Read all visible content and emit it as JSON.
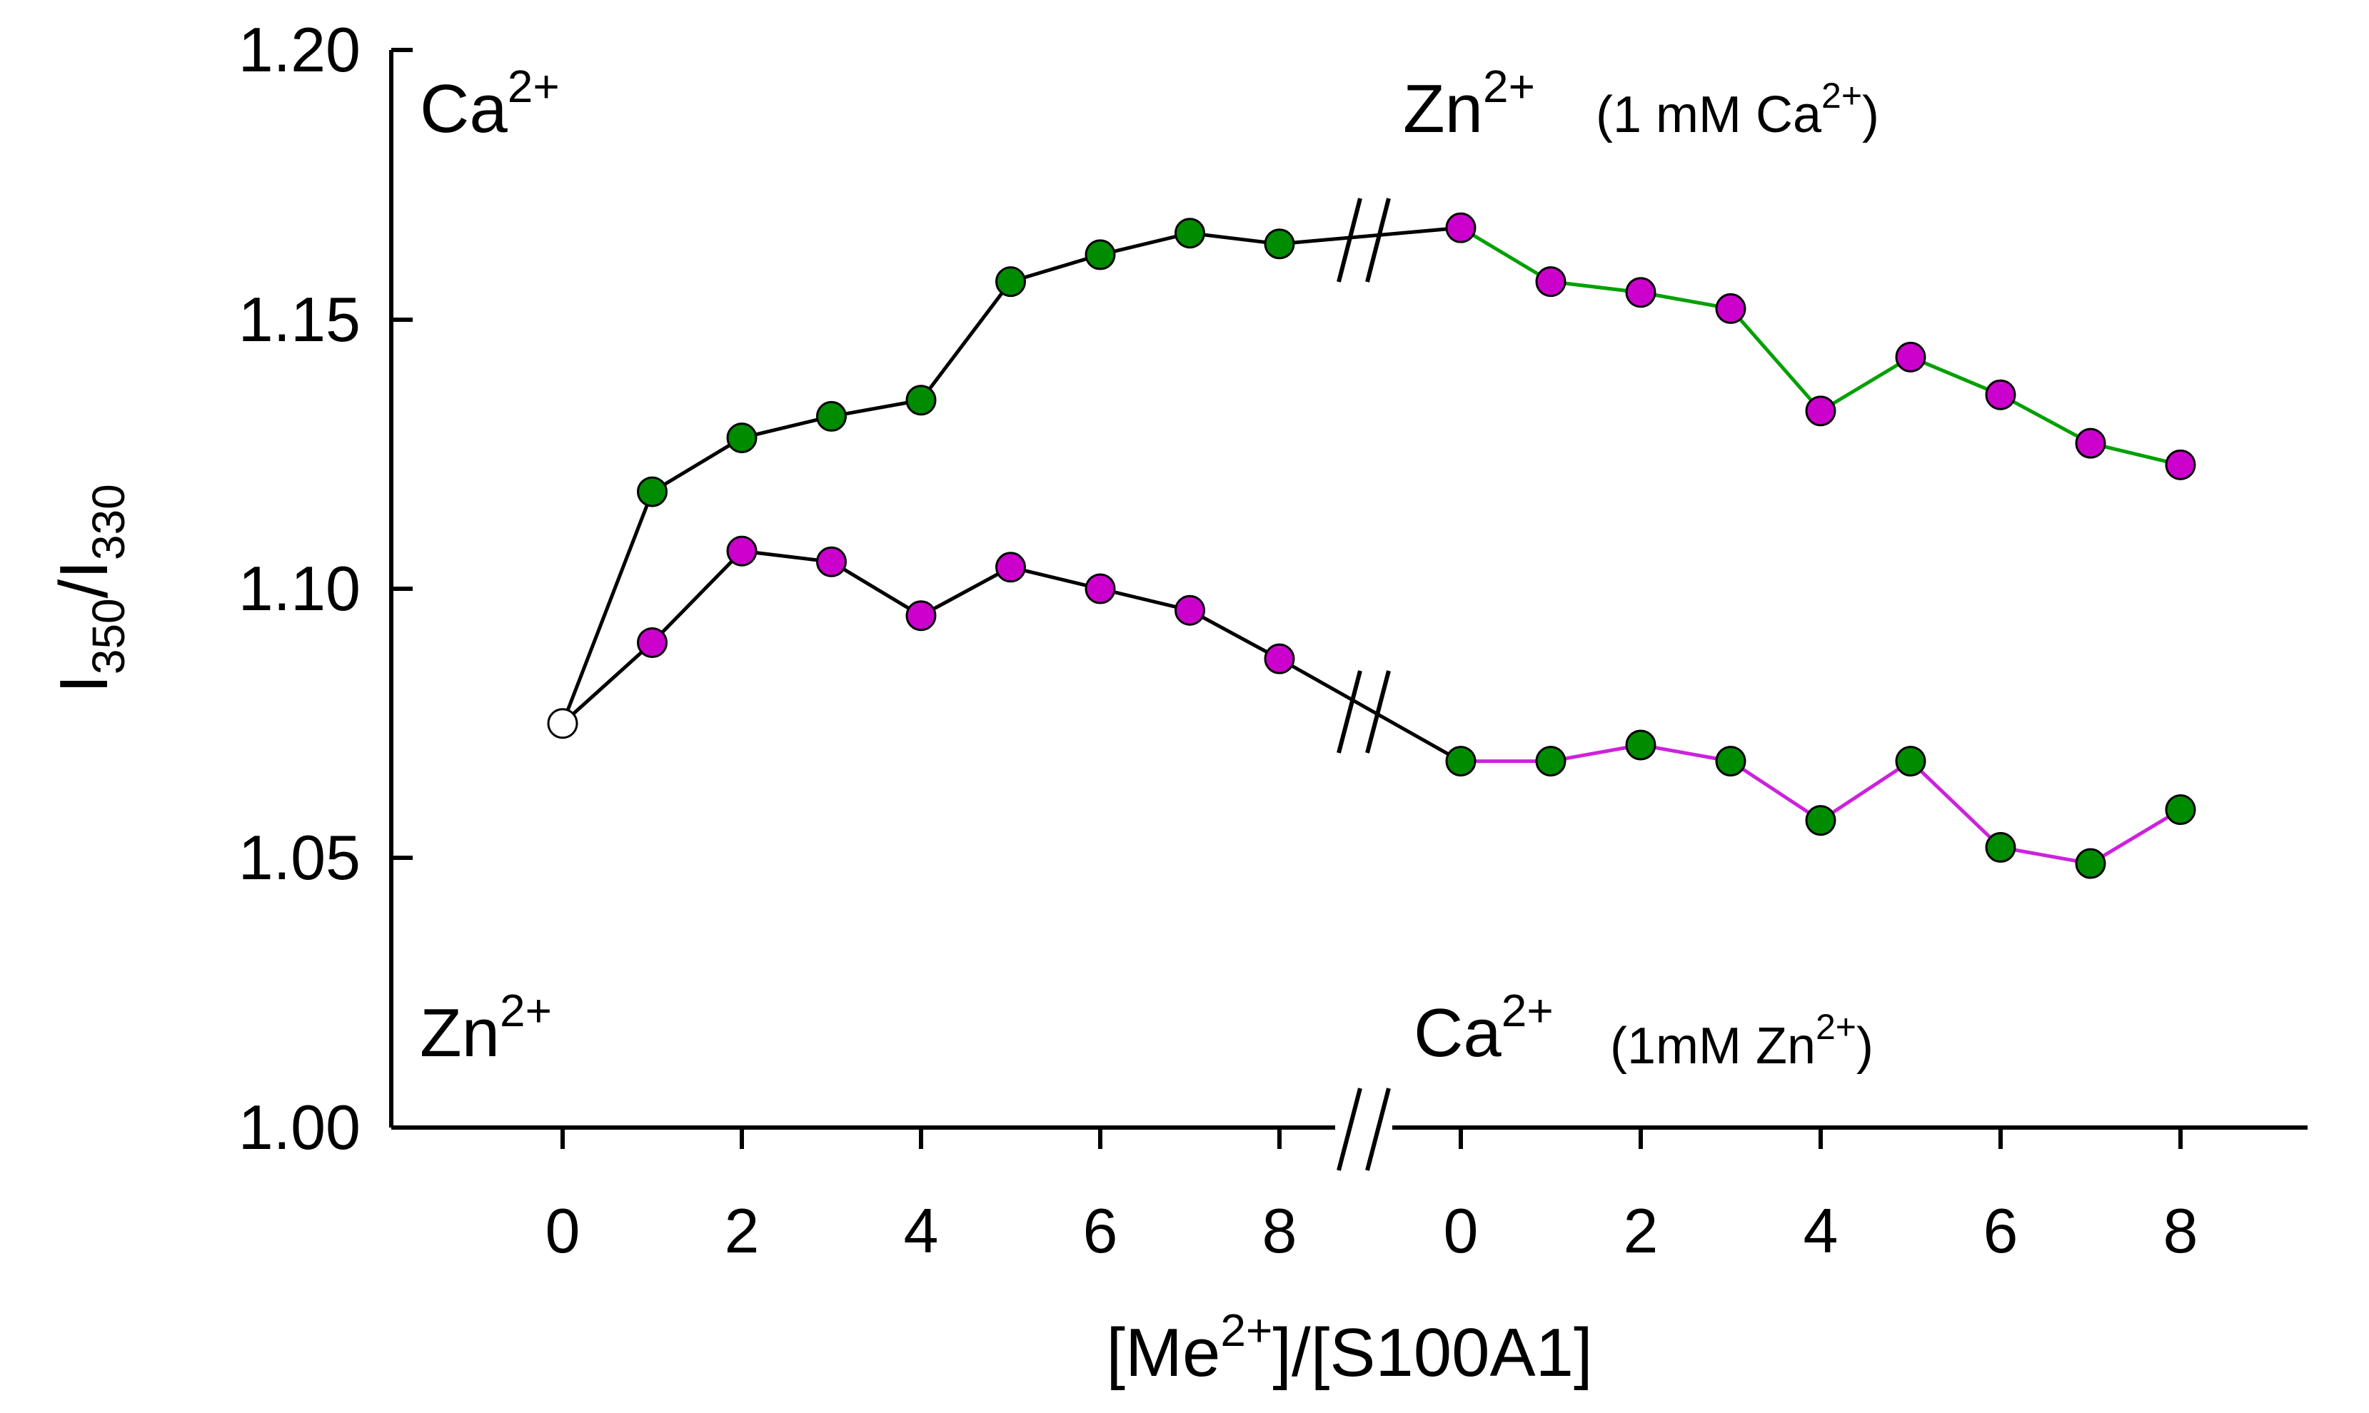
{
  "chart_data": {
    "type": "line",
    "xlabel": "[Me2+]/[S100A1]",
    "ylabel": "I350/I330",
    "ylim": [
      1.0,
      1.2
    ],
    "yticks": [
      "1.00",
      "1.05",
      "1.10",
      "1.15",
      "1.20"
    ],
    "x_left": [
      0,
      1,
      2,
      3,
      4,
      5,
      6,
      7,
      8
    ],
    "x_right": [
      0,
      1,
      2,
      3,
      4,
      5,
      6,
      7,
      8
    ],
    "xtick_labels_left": [
      "0",
      "2",
      "4",
      "6",
      "8"
    ],
    "xtick_labels_right": [
      "0",
      "2",
      "4",
      "6",
      "8"
    ],
    "axis_break": true,
    "colors": {
      "ca": "#008c00",
      "zn": "#cc00cc",
      "ca_line_right": "#00a000",
      "zn_line_right": "#cc22dd",
      "start_point": "#ffffff",
      "line_left": "#000000"
    },
    "panel_labels": {
      "top_left": {
        "ion": "Ca",
        "charge": "2+"
      },
      "bottom_left": {
        "ion": "Zn",
        "charge": "2+"
      },
      "top_right": {
        "ion": "Zn",
        "charge": "2+",
        "note_open": "(1 mM Ca",
        "note_charge": "2+",
        "note_close": ")"
      },
      "bottom_right": {
        "ion": "Ca",
        "charge": "2+",
        "note_open": "(1mM Zn",
        "note_charge": "2+",
        "note_close": ")"
      }
    },
    "axis_title_parts": {
      "x": {
        "open": "[Me",
        "charge": "2+",
        "close": "]/[S100A1]"
      },
      "y": {
        "first": "I",
        "first_sub": "350",
        "slash": "/I",
        "second_sub": "330"
      }
    },
    "series": [
      {
        "name": "Ca2+ then Zn2+ (1 mM Ca2+)",
        "left_values": [
          1.075,
          1.118,
          1.128,
          1.132,
          1.135,
          1.157,
          1.162,
          1.166,
          1.164
        ],
        "right_values": [
          1.167,
          1.157,
          1.155,
          1.152,
          1.133,
          1.143,
          1.136,
          1.127,
          1.123
        ],
        "left_marker_color": "ca",
        "right_marker_color": "zn",
        "right_line_color": "ca_line_right"
      },
      {
        "name": "Zn2+ then Ca2+ (1mM Zn2+)",
        "left_values": [
          1.075,
          1.09,
          1.107,
          1.105,
          1.095,
          1.104,
          1.1,
          1.096,
          1.087
        ],
        "right_values": [
          1.068,
          1.068,
          1.071,
          1.068,
          1.057,
          1.068,
          1.052,
          1.049,
          1.059
        ],
        "left_marker_color": "zn",
        "right_marker_color": "ca",
        "right_line_color": "zn_line_right"
      }
    ]
  }
}
